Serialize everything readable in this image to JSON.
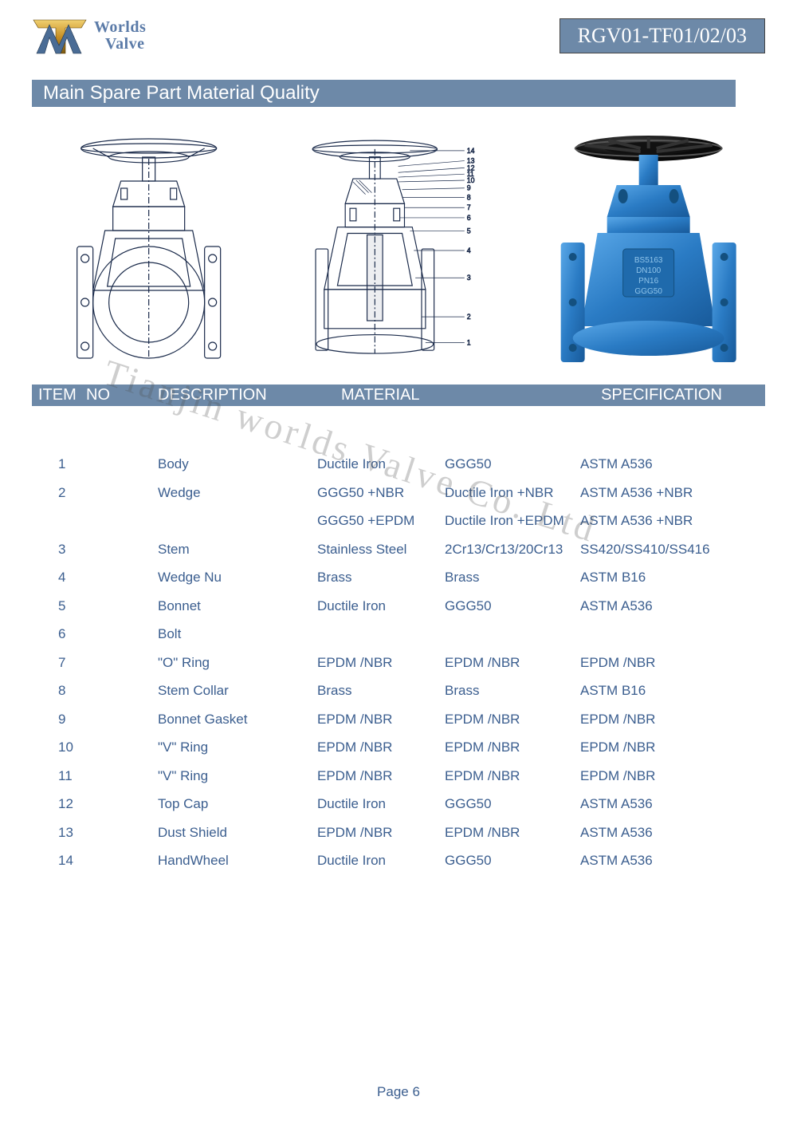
{
  "header": {
    "logo_line1": "Worlds",
    "logo_line2": "Valve",
    "product_code": "RGV01-TF01/02/03"
  },
  "section_title": "Main Spare Part Material Quality",
  "table_headers": {
    "item": "ITEM",
    "no": "NO",
    "description": "DESCRIPTION",
    "material": "MATERIAL",
    "specification": "SPECIFICATION"
  },
  "rows": [
    {
      "no": "1",
      "desc": "Body",
      "m1": "Ductile Iron",
      "m2": "GGG50",
      "m3": "ASTM A536"
    },
    {
      "no": "2",
      "desc": "Wedge",
      "m1": "GGG50 +NBR",
      "m2": "Ductile Iron +NBR",
      "m3": "ASTM A536 +NBR"
    },
    {
      "no": "",
      "desc": "",
      "m1": "GGG50 +EPDM",
      "m2": "Ductile Iron +EPDM",
      "m3": "ASTM A536 +NBR"
    },
    {
      "no": "3",
      "desc": "Stem",
      "m1": "Stainless Steel",
      "m2": "2Cr13/Cr13/20Cr13",
      "m3": "SS420/SS410/SS416"
    },
    {
      "no": "4",
      "desc": "Wedge Nu",
      "m1": "Brass",
      "m2": "Brass",
      "m3": "ASTM B16"
    },
    {
      "no": "5",
      "desc": "Bonnet",
      "m1": "Ductile Iron",
      "m2": "GGG50",
      "m3": "ASTM A536"
    },
    {
      "no": "6",
      "desc": "Bolt",
      "m1": "",
      "m2": "",
      "m3": ""
    },
    {
      "no": "7",
      "desc": "\"O\" Ring",
      "m1": "EPDM /NBR",
      "m2": "EPDM /NBR",
      "m3": "EPDM /NBR"
    },
    {
      "no": "8",
      "desc": "Stem Collar",
      "m1": "Brass",
      "m2": "Brass",
      "m3": "ASTM B16"
    },
    {
      "no": "9",
      "desc": "Bonnet Gasket",
      "m1": "EPDM /NBR",
      "m2": "EPDM /NBR",
      "m3": "EPDM /NBR"
    },
    {
      "no": "10",
      "desc": "\"V\" Ring",
      "m1": "EPDM /NBR",
      "m2": "EPDM /NBR",
      "m3": "EPDM /NBR"
    },
    {
      "no": "11",
      "desc": "\"V\" Ring",
      "m1": "EPDM /NBR",
      "m2": "EPDM /NBR",
      "m3": "EPDM /NBR"
    },
    {
      "no": "12",
      "desc": "Top Cap",
      "m1": "Ductile Iron",
      "m2": "GGG50",
      "m3": "ASTM A536"
    },
    {
      "no": "13",
      "desc": "Dust Shield",
      "m1": "EPDM /NBR",
      "m2": "EPDM /NBR",
      "m3": "ASTM A536"
    },
    {
      "no": "14",
      "desc": "HandWheel",
      "m1": "Ductile Iron",
      "m2": "GGG50",
      "m3": "ASTM A536"
    }
  ],
  "watermark": "Tianjin worlds Valve Co. Ltd",
  "footer": "Page 6",
  "colors": {
    "header_bg": "#6d89a8",
    "text_blue": "#3b5e8f",
    "logo_blue": "#5b7ba8",
    "valve_blue": "#2a7bc4",
    "gold1": "#d4a436",
    "gold2": "#8a6818"
  },
  "diagram_labels": [
    "1",
    "2",
    "3",
    "4",
    "5",
    "6",
    "7",
    "8",
    "9",
    "10",
    "11",
    "12",
    "13",
    "14"
  ]
}
